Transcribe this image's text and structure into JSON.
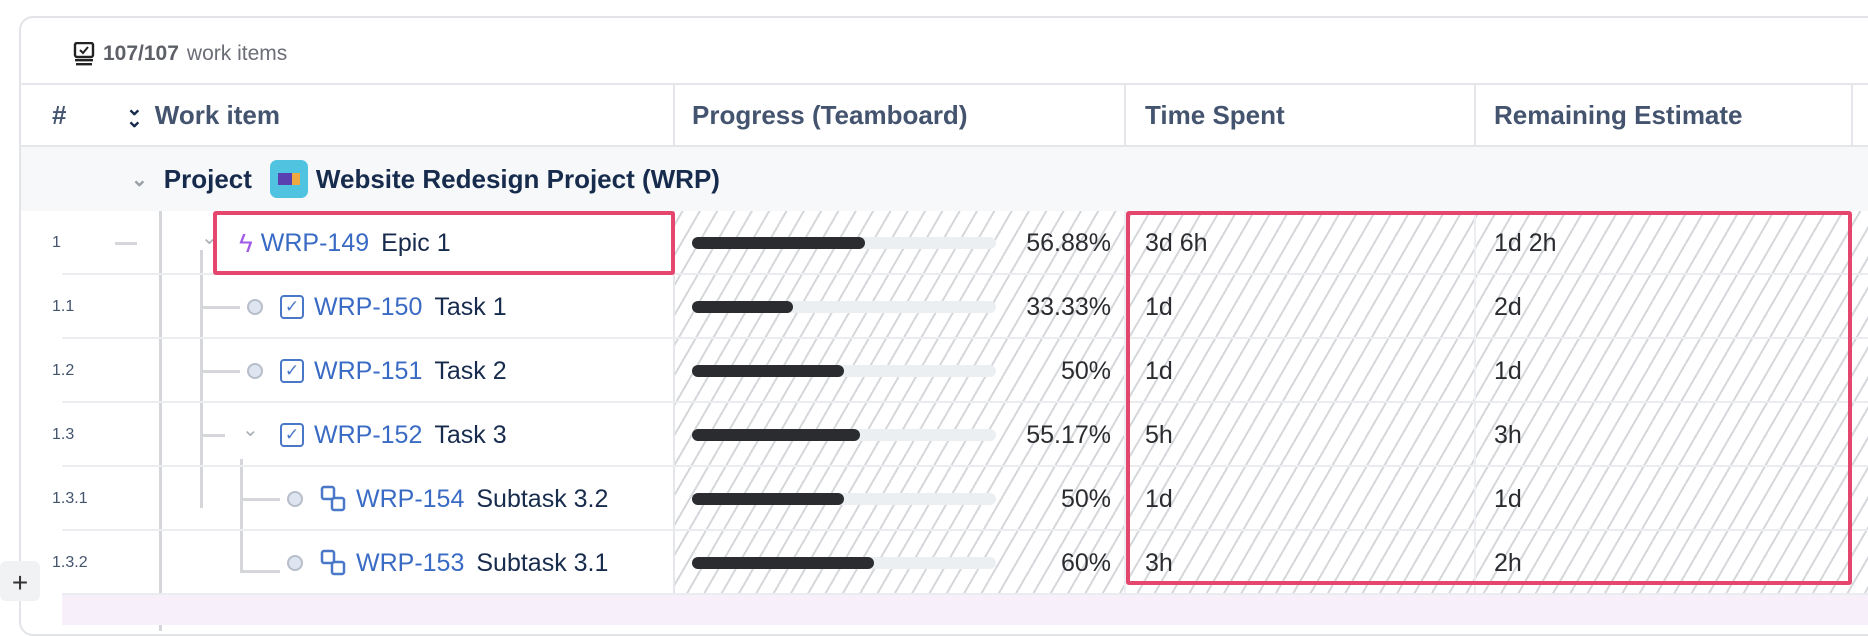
{
  "summary": {
    "count": "107/107",
    "label": "work items",
    "icon": "work-items-icon"
  },
  "columns": {
    "num": "#",
    "work_item": "Work item",
    "progress": "Progress (Teamboard)",
    "time_spent": "Time Spent",
    "remaining": "Remaining Estimate"
  },
  "project": {
    "label": "Project",
    "name": "Website Redesign Project (WRP)"
  },
  "rows": [
    {
      "num": "1",
      "key": "WRP-149",
      "title": "Epic 1",
      "type": "epic",
      "progress": 56.88,
      "progress_label": "56.88%",
      "time_spent": "3d 6h",
      "remaining": "1d 2h"
    },
    {
      "num": "1.1",
      "key": "WRP-150",
      "title": "Task 1",
      "type": "task",
      "progress": 33.33,
      "progress_label": "33.33%",
      "time_spent": "1d",
      "remaining": "2d"
    },
    {
      "num": "1.2",
      "key": "WRP-151",
      "title": "Task 2",
      "type": "task",
      "progress": 50,
      "progress_label": "50%",
      "time_spent": "1d",
      "remaining": "1d"
    },
    {
      "num": "1.3",
      "key": "WRP-152",
      "title": "Task 3",
      "type": "task",
      "progress": 55.17,
      "progress_label": "55.17%",
      "time_spent": "5h",
      "remaining": "3h"
    },
    {
      "num": "1.3.1",
      "key": "WRP-154",
      "title": "Subtask 3.2",
      "type": "subtask",
      "progress": 50,
      "progress_label": "50%",
      "time_spent": "1d",
      "remaining": "1d"
    },
    {
      "num": "1.3.2",
      "key": "WRP-153",
      "title": "Subtask 3.1",
      "type": "subtask",
      "progress": 60,
      "progress_label": "60%",
      "time_spent": "3h",
      "remaining": "2h"
    }
  ],
  "colors": {
    "highlight": "#e5466e",
    "link": "#3a6bc4",
    "epic": "#a259e6",
    "bar": "#2a2c30"
  },
  "add_label": "+"
}
